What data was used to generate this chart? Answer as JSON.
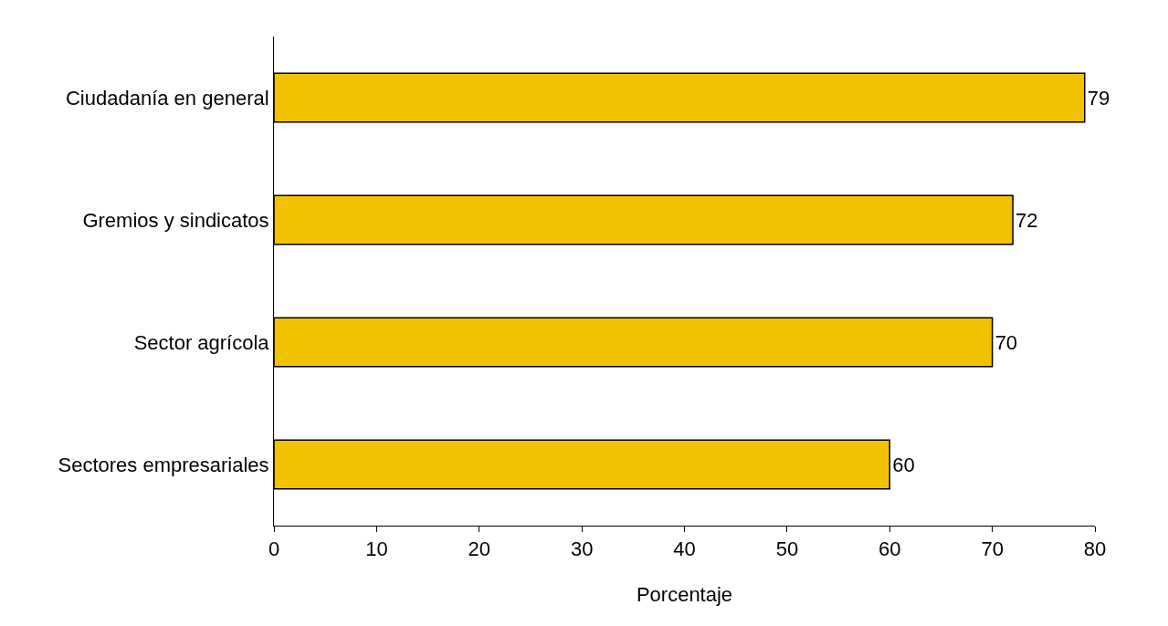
{
  "chart_data": {
    "type": "bar",
    "orientation": "horizontal",
    "xlabel": "Porcentaje",
    "categories": [
      "Ciudadanía en general",
      "Gremios y sindicatos",
      "Sector agrícola",
      "Sectores empresariales"
    ],
    "values": [
      79,
      72,
      70,
      60
    ],
    "color": "#f2c200",
    "xlim": [
      0,
      80
    ],
    "xticks": [
      0,
      10,
      20,
      30,
      40,
      50,
      60,
      70,
      80
    ],
    "data_labels": true
  }
}
